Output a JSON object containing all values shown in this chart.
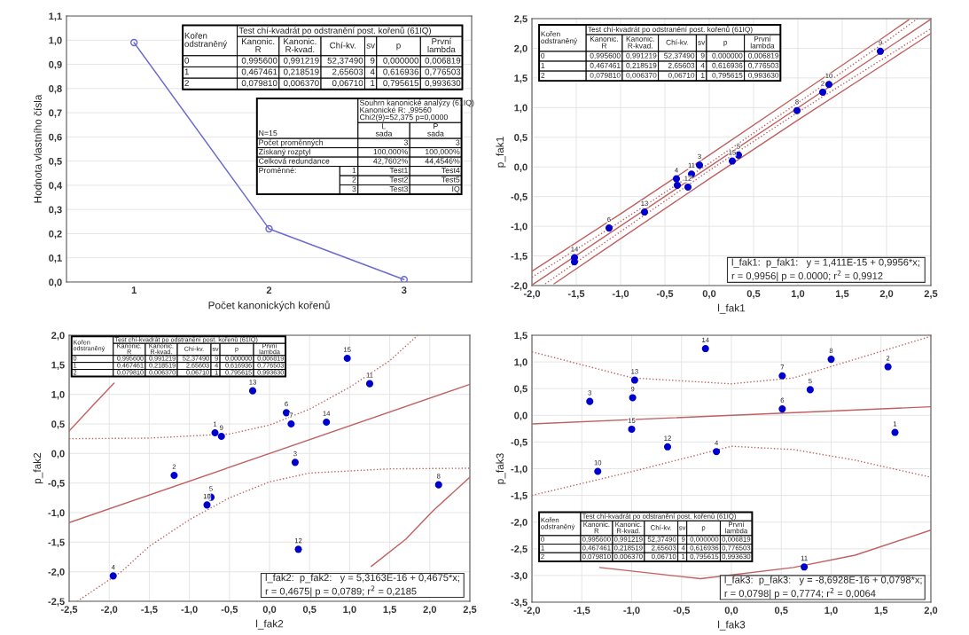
{
  "chart_data": [
    {
      "type": "line",
      "xlabel": "Počet kanonických kořenů",
      "ylabel": "Hodnota vlastního čísla",
      "grid": "y",
      "xlim": [
        0.5,
        3.5
      ],
      "xticks": [
        1,
        2,
        3
      ],
      "ylim": [
        0,
        1.1
      ],
      "yticks": [
        {
          "value": 0,
          "label": "0,0"
        },
        {
          "value": 0.1,
          "label": "0,1"
        },
        {
          "value": 0.2,
          "label": "0,2"
        },
        {
          "value": 0.3,
          "label": "0,3"
        },
        {
          "value": 0.4,
          "label": "0,4"
        },
        {
          "value": 0.5,
          "label": "0,5"
        },
        {
          "value": 0.6,
          "label": "0,6"
        },
        {
          "value": 0.7,
          "label": "0,7"
        },
        {
          "value": 0.8,
          "label": "0,8"
        },
        {
          "value": 0.9,
          "label": "0,9"
        },
        {
          "value": 1.0,
          "label": "1,0"
        },
        {
          "value": 1.1,
          "label": "1,1"
        }
      ],
      "series": [
        {
          "color": "#6a6ad0",
          "marker": "circle",
          "x": [
            1,
            2,
            3
          ],
          "values": [
            0.99,
            0.22,
            0.01
          ]
        }
      ],
      "annotations": [
        "Kořen\nodstraněný",
        "Test chí-kvadrát po odstranění post. kořenů (61IQ)",
        "Kanonic.\nR",
        "Kanonic.\nR-kvad.",
        "Chí-kv.",
        "sv",
        "p",
        "První\nlambda",
        "0",
        "0,995600",
        "0,991219",
        "52,37490",
        "9",
        "0,000000",
        "0,006819",
        "1",
        "0,467461",
        "0,218519",
        "2,65603",
        "4",
        "0,616936",
        "0,776503",
        "2",
        "0,079810",
        "0,006370",
        "0,06710",
        "1",
        "0,795615",
        "0,993630",
        "N=15",
        "Souhrn kanonické analýzy (61IQ)\nKanonické R: ,99560\nChi2(9)=52,375 p=0,0000",
        "L\nsada",
        "P\nsada",
        "Počet proměnných",
        "3",
        "3",
        "Získaný rozptyl",
        "100,000%",
        "100,000%",
        "Celková redundance",
        "42,7602%",
        "44,4546%",
        "Proměnné:",
        "1",
        "Test1",
        "Test4",
        "2",
        "Test2",
        "Test5",
        "3",
        "Test3",
        "IQ"
      ]
    },
    {
      "type": "scatter",
      "xlabel": "l_fak1",
      "ylabel": "p_fak1",
      "grid": true,
      "xlim": [
        -2.0,
        2.5
      ],
      "xticks": [
        {
          "value": -2.0,
          "label": "-2,0"
        },
        {
          "value": -1.5,
          "label": "-1,5"
        },
        {
          "value": -1.0,
          "label": "-1,0"
        },
        {
          "value": -0.5,
          "label": "-0,5"
        },
        {
          "value": 0,
          "label": "0,0"
        },
        {
          "value": 0.5,
          "label": "0,5"
        },
        {
          "value": 1.0,
          "label": "1,0"
        },
        {
          "value": 1.5,
          "label": "1,5"
        },
        {
          "value": 2.0,
          "label": "2,0"
        },
        {
          "value": 2.5,
          "label": "2,5"
        }
      ],
      "ylim": [
        -2.0,
        2.5
      ],
      "yticks": [
        {
          "value": -2.0,
          "label": "-2,0"
        },
        {
          "value": -1.5,
          "label": "-1,5"
        },
        {
          "value": -1.0,
          "label": "-1,0"
        },
        {
          "value": -0.5,
          "label": "-0,5"
        },
        {
          "value": 0,
          "label": "0,0"
        },
        {
          "value": 0.5,
          "label": "0,5"
        },
        {
          "value": 1.0,
          "label": "1,0"
        },
        {
          "value": 1.5,
          "label": "1,5"
        },
        {
          "value": 2.0,
          "label": "2,0"
        },
        {
          "value": 2.5,
          "label": "2,5"
        }
      ],
      "series": [
        {
          "color": "#0000cc",
          "marker": "circle",
          "x": [
            1.93,
            1.35,
            1.28,
            0.99,
            0.33,
            0.26,
            -0.11,
            -0.2,
            -0.37,
            -0.36,
            -0.24,
            -0.73,
            -1.13,
            -1.52,
            -1.52
          ],
          "values": [
            1.95,
            1.39,
            1.26,
            0.95,
            0.2,
            0.1,
            0.03,
            -0.12,
            -0.2,
            -0.31,
            -0.34,
            -0.76,
            -1.03,
            -1.53,
            -1.6
          ]
        },
        {
          "type": "line",
          "color": "#c06060",
          "x": [
            -2.0,
            2.5
          ],
          "values": [
            -1.99,
            2.49
          ]
        },
        {
          "type": "line",
          "color": "#c06060",
          "line_style": "dotted",
          "x": [
            -2.0,
            -1.0,
            0,
            1.0,
            2.0,
            2.35
          ],
          "values": [
            -1.86,
            -0.92,
            0.06,
            1.08,
            2.12,
            2.5
          ]
        },
        {
          "type": "line",
          "color": "#c06060",
          "line_style": "dotted",
          "x": [
            -1.85,
            -1.0,
            0,
            1.0,
            2.0,
            2.5
          ],
          "values": [
            -1.97,
            -1.09,
            -0.06,
            0.92,
            1.86,
            2.33
          ]
        },
        {
          "type": "line",
          "color": "#c06060",
          "x": [
            -2.0,
            -1.0,
            0,
            1.0,
            2.0,
            2.25
          ],
          "values": [
            -1.76,
            -0.79,
            0.2,
            1.21,
            2.22,
            2.48
          ]
        },
        {
          "type": "line",
          "color": "#c06060",
          "x": [
            -1.75,
            -1.0,
            0,
            1.0,
            2.0,
            2.5
          ],
          "values": [
            -1.97,
            -1.21,
            -0.2,
            0.79,
            1.76,
            2.25
          ]
        }
      ],
      "annotations": [
        "Kořen\nodstraněný",
        "Test chí-kvadrát po odstranění post. kořenů (61IQ)",
        "Kanonic.\nR",
        "Kanonic.\nR-kvad.",
        "Chí-kv.",
        "sv",
        "p",
        "První\nlambda",
        "0",
        "0,995600",
        "0,991219",
        "52,37490",
        "9",
        "0,000000",
        "0,006819",
        "1",
        "0,467461",
        "0,218519",
        "2,65603",
        "4",
        "0,616936",
        "0,776503",
        "2",
        "0,079810",
        "0,006370",
        "0,06710",
        "1",
        "0,795615",
        "0,993630",
        "l_fak1:  p_fak1:   y = 1,411E-15 + 0,9956*x;\nr = 0,9956| p = 0.0000; r$^{2}$ = 0,9912",
        {
          "text": "9",
          "x": 1.93,
          "y": 1.95
        },
        {
          "text": "10",
          "x": 1.35,
          "y": 1.39
        },
        {
          "text": "2",
          "x": 1.28,
          "y": 1.26
        },
        {
          "text": "8",
          "x": 0.99,
          "y": 0.95
        },
        {
          "text": "5",
          "x": 0.33,
          "y": 0.2
        },
        {
          "text": "15",
          "x": 0.26,
          "y": 0.1
        },
        {
          "text": "3",
          "x": -0.11,
          "y": 0.03
        },
        {
          "text": "11",
          "x": -0.2,
          "y": -0.12
        },
        {
          "text": "4",
          "x": -0.37,
          "y": -0.2
        },
        {
          "text": "12",
          "x": -0.24,
          "y": -0.34
        },
        {
          "text": "13",
          "x": -0.73,
          "y": -0.76
        },
        {
          "text": "6",
          "x": -1.13,
          "y": -1.03
        },
        {
          "text": "14",
          "x": -1.52,
          "y": -1.53
        }
      ]
    },
    {
      "type": "scatter",
      "xlabel": "l_fak2",
      "ylabel": "p_fak2",
      "grid": true,
      "xlim": [
        -2.5,
        2.5
      ],
      "xticks": [
        {
          "value": -2.5,
          "label": "-2,5"
        },
        {
          "value": -2.0,
          "label": "-2,0"
        },
        {
          "value": -1.5,
          "label": "-1,5"
        },
        {
          "value": -1.0,
          "label": "-1,0"
        },
        {
          "value": -0.5,
          "label": "-0,5"
        },
        {
          "value": 0,
          "label": "0,0"
        },
        {
          "value": 0.5,
          "label": "0,5"
        },
        {
          "value": 1.0,
          "label": "1,0"
        },
        {
          "value": 1.5,
          "label": "1,5"
        },
        {
          "value": 2.0,
          "label": "2,0"
        },
        {
          "value": 2.5,
          "label": "2,5"
        }
      ],
      "ylim": [
        -2.5,
        2.0
      ],
      "yticks": [
        {
          "value": -2.5,
          "label": "-2,5"
        },
        {
          "value": -2.0,
          "label": "-2,0"
        },
        {
          "value": -1.5,
          "label": "-1,5"
        },
        {
          "value": -1.0,
          "label": "-1,0"
        },
        {
          "value": -0.5,
          "label": "-0,5"
        },
        {
          "value": 0,
          "label": "0,0"
        },
        {
          "value": 0.5,
          "label": "0,5"
        },
        {
          "value": 1.0,
          "label": "1,0"
        },
        {
          "value": 1.5,
          "label": "1,5"
        },
        {
          "value": 2.0,
          "label": "2,0"
        }
      ],
      "series": [
        {
          "color": "#0000cc",
          "marker": "circle",
          "x": [
            0.97,
            1.25,
            -0.21,
            0.21,
            0.27,
            0.71,
            -0.68,
            -0.6,
            0.32,
            -1.19,
            2.11,
            -0.73,
            -0.78,
            0.36,
            -1.95
          ],
          "values": [
            1.61,
            1.18,
            1.06,
            0.69,
            0.5,
            0.53,
            0.35,
            0.29,
            -0.15,
            -0.37,
            -0.53,
            -0.74,
            -0.87,
            -1.62,
            -2.07
          ]
        },
        {
          "type": "line",
          "color": "#c06060",
          "x": [
            -2.5,
            2.5
          ],
          "values": [
            -1.17,
            1.17
          ]
        },
        {
          "type": "line",
          "color": "#c06060",
          "line_style": "dotted",
          "x": [
            -2.5,
            -1.5,
            -0.5,
            0,
            0.5,
            1.0,
            1.5,
            1.85
          ],
          "values": [
            0.25,
            0.26,
            0.33,
            0.48,
            0.75,
            1.12,
            1.57,
            2.0
          ]
        },
        {
          "type": "line",
          "color": "#c06060",
          "line_style": "dotted",
          "x": [
            -2.4,
            -1.85,
            -1.5,
            -1.0,
            -0.5,
            0,
            0.5,
            1.5,
            2.5
          ],
          "values": [
            -2.5,
            -2.0,
            -1.57,
            -1.12,
            -0.75,
            -0.48,
            -0.33,
            -0.26,
            -0.25
          ]
        },
        {
          "type": "line",
          "color": "#c06060",
          "x": [
            -2.5,
            -2.2,
            -1.94
          ],
          "values": [
            0.38,
            0.82,
            1.19
          ]
        },
        {
          "type": "line",
          "color": "#c06060",
          "x": [
            1.27,
            1.7,
            2.04,
            2.5
          ],
          "values": [
            -1.91,
            -1.45,
            -0.97,
            -0.4
          ]
        }
      ],
      "annotations": [
        "Kořen\nodstraněný",
        "Test chí-kvadrát po odstranění post. kořenů (61IQ)",
        "Kanonic.\nR",
        "Kanonic.\nR-kvad.",
        "Chí-kv.",
        "sv",
        "p",
        "První\nlambda",
        "0",
        "0,995600",
        "0,991219",
        "52,37490",
        "9",
        "0,000000",
        "0,006819",
        "1",
        "0,467461",
        "0,218519",
        "2,65603",
        "4",
        "0,616936",
        "0,776503",
        "2",
        "0,079810",
        "0,006370",
        "0,06710",
        "1",
        "0,795615",
        "0,993630",
        "l_fak2:  p_fak2:   y = 5,3163E-16 + 0,4675*x;\nr = 0,4675| p = 0,0789; r$^{2}$ = 0,2185",
        {
          "text": "15",
          "x": 0.97,
          "y": 1.61
        },
        {
          "text": "11",
          "x": 1.25,
          "y": 1.18
        },
        {
          "text": "13",
          "x": -0.21,
          "y": 1.06
        },
        {
          "text": "6",
          "x": 0.21,
          "y": 0.69
        },
        {
          "text": "7",
          "x": 0.27,
          "y": 0.5
        },
        {
          "text": "14",
          "x": 0.71,
          "y": 0.53
        },
        {
          "text": "1",
          "x": -0.68,
          "y": 0.35
        },
        {
          "text": "9",
          "x": -0.6,
          "y": 0.29
        },
        {
          "text": "3",
          "x": 0.32,
          "y": -0.15
        },
        {
          "text": "2",
          "x": -1.19,
          "y": -0.37
        },
        {
          "text": "8",
          "x": 2.11,
          "y": -0.53
        },
        {
          "text": "5",
          "x": -0.73,
          "y": -0.74
        },
        {
          "text": "10",
          "x": -0.78,
          "y": -0.87
        },
        {
          "text": "12",
          "x": 0.36,
          "y": -1.62
        },
        {
          "text": "4",
          "x": -1.95,
          "y": -2.07
        }
      ]
    },
    {
      "type": "scatter",
      "xlabel": "l_fak3",
      "ylabel": "p_fak3",
      "grid": true,
      "xlim": [
        -2.0,
        2.0
      ],
      "xticks": [
        {
          "value": -2.0,
          "label": "-2,0"
        },
        {
          "value": -1.5,
          "label": "-1,5"
        },
        {
          "value": -1.0,
          "label": "-1,0"
        },
        {
          "value": -0.5,
          "label": "-0,5"
        },
        {
          "value": 0,
          "label": "0,0"
        },
        {
          "value": 0.5,
          "label": "0,5"
        },
        {
          "value": 1.0,
          "label": "1,0"
        },
        {
          "value": 1.5,
          "label": "1,5"
        },
        {
          "value": 2.0,
          "label": "2,0"
        }
      ],
      "ylim": [
        -3.5,
        1.5
      ],
      "yticks": [
        {
          "value": -3.5,
          "label": "-3,5"
        },
        {
          "value": -3.0,
          "label": "-3,0"
        },
        {
          "value": -2.5,
          "label": "-2,5"
        },
        {
          "value": -2.0,
          "label": "-2,0"
        },
        {
          "value": -1.5,
          "label": "-1,5"
        },
        {
          "value": -1.0,
          "label": "-1,0"
        },
        {
          "value": -0.5,
          "label": "-0,5"
        },
        {
          "value": 0,
          "label": "0,0"
        },
        {
          "value": 0.5,
          "label": "0,5"
        },
        {
          "value": 1.0,
          "label": "1,0"
        },
        {
          "value": 1.5,
          "label": "1,5"
        }
      ],
      "series": [
        {
          "color": "#0000cc",
          "marker": "circle",
          "x": [
            -0.26,
            1.0,
            1.57,
            0.51,
            -0.97,
            0.79,
            -1.42,
            -0.99,
            0.51,
            -1.0,
            1.64,
            -0.64,
            -0.15,
            -1.34,
            0.73
          ],
          "values": [
            1.25,
            1.05,
            0.91,
            0.74,
            0.66,
            0.48,
            0.26,
            0.33,
            0.12,
            -0.26,
            -0.32,
            -0.59,
            -0.68,
            -1.05,
            -2.84
          ]
        },
        {
          "type": "line",
          "color": "#c06060",
          "x": [
            -2.0,
            2.0
          ],
          "values": [
            -0.16,
            0.16
          ]
        },
        {
          "type": "line",
          "color": "#c06060",
          "line_style": "dotted",
          "x": [
            -2.0,
            -0.99,
            0,
            0.62,
            1.24,
            2.0
          ],
          "values": [
            1.19,
            0.7,
            0.59,
            0.7,
            1.05,
            1.48
          ]
        },
        {
          "type": "line",
          "color": "#c06060",
          "line_style": "dotted",
          "x": [
            -2.0,
            -0.99,
            0,
            0.62,
            1.24,
            2.0
          ],
          "values": [
            -1.5,
            -1.05,
            -0.58,
            -0.64,
            -0.84,
            -1.16
          ]
        },
        {
          "type": "line",
          "color": "#c06060",
          "x": [
            -1.32,
            -0.31,
            0.62,
            1.24,
            2.0
          ],
          "values": [
            -2.85,
            -3.06,
            -2.85,
            -2.62,
            -2.15
          ]
        }
      ],
      "annotations": [
        "Kořen\nodstraněný",
        "Test chí-kvadrát po odstranění post. kořenů (61IQ)",
        "Kanonic.\nR",
        "Kanonic.\nR-kvad.",
        "Chí-kv.",
        "sv",
        "p",
        "První\nlambda",
        "0",
        "0,995600",
        "0,991219",
        "52,37490",
        "9",
        "0,000000",
        "0,006819",
        "1",
        "0,467461",
        "0,218519",
        "2,65603",
        "4",
        "0,616936",
        "0,776503",
        "2",
        "0,079810",
        "0,006370",
        "0,06710",
        "1",
        "0,795615",
        "0,993630",
        "l_fak3:  p_fak3:   y = -8,6928E-16 + 0,0798*x;\nr = 0,0798| p = 0,7774; r$^{2}$ = 0,0064",
        {
          "text": "14",
          "x": -0.26,
          "y": 1.25
        },
        {
          "text": "8",
          "x": 1.0,
          "y": 1.05
        },
        {
          "text": "2",
          "x": 1.57,
          "y": 0.91
        },
        {
          "text": "7",
          "x": 0.51,
          "y": 0.74
        },
        {
          "text": "13",
          "x": -0.97,
          "y": 0.66
        },
        {
          "text": "5",
          "x": 0.79,
          "y": 0.48
        },
        {
          "text": "3",
          "x": -1.42,
          "y": 0.26
        },
        {
          "text": "9",
          "x": -0.99,
          "y": 0.33
        },
        {
          "text": "6",
          "x": 0.51,
          "y": 0.12
        },
        {
          "text": "15",
          "x": -1.0,
          "y": -0.26
        },
        {
          "text": "1",
          "x": 1.64,
          "y": -0.32
        },
        {
          "text": "12",
          "x": -0.64,
          "y": -0.59
        },
        {
          "text": "4",
          "x": -0.15,
          "y": -0.68
        },
        {
          "text": "10",
          "x": -1.34,
          "y": -1.05
        },
        {
          "text": "11",
          "x": 0.73,
          "y": -2.84
        }
      ]
    }
  ]
}
